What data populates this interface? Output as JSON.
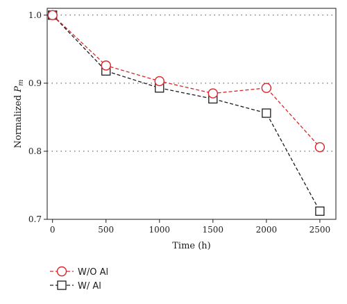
{
  "chart_data": {
    "type": "line",
    "xlabel": "Time (h)",
    "ylabel_prefix": "Normalized ",
    "ylabel_symbol": "P",
    "ylabel_subscript": "m",
    "x": [
      0,
      500,
      1000,
      1500,
      2000,
      2500
    ],
    "x_ticks": [
      "0",
      "500",
      "1000",
      "1500",
      "2000",
      "2500"
    ],
    "y_ticks": [
      "0.7",
      "0.8",
      "0.9",
      "1.0"
    ],
    "y_tick_values": [
      0.7,
      0.8,
      0.9,
      1.0
    ],
    "xlim": [
      -50,
      2650
    ],
    "ylim": [
      0.7,
      1.01
    ],
    "grid": "horizontal dotted",
    "legend_position": "bottom-left, below plot",
    "series": [
      {
        "name": "W/O Al",
        "values": [
          1.0,
          0.926,
          0.903,
          0.885,
          0.893,
          0.806
        ],
        "color": "#d7262b",
        "marker": "circle",
        "line_style": "dashed"
      },
      {
        "name": "W/ Al",
        "values": [
          1.0,
          0.918,
          0.893,
          0.877,
          0.856,
          0.712
        ],
        "color": "#1a1a1a",
        "marker": "square",
        "line_style": "dashed"
      }
    ]
  }
}
